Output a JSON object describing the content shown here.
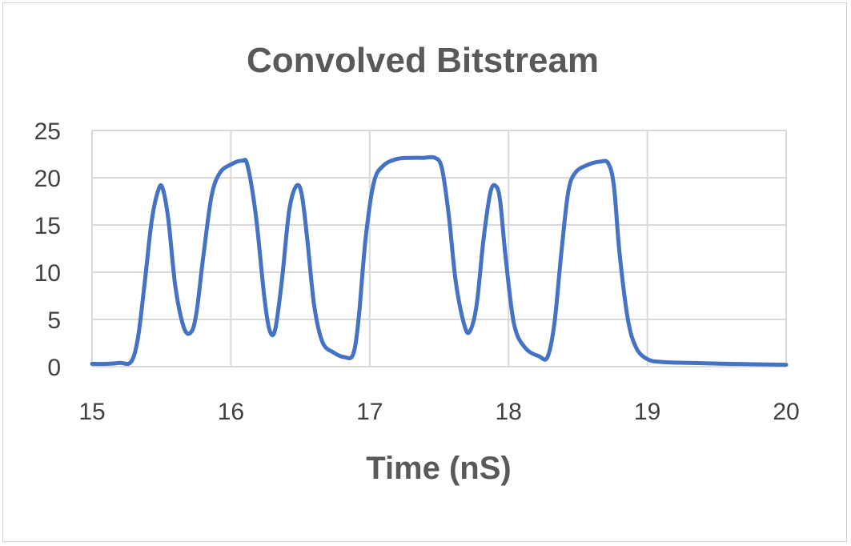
{
  "chart_data": {
    "type": "line",
    "title": "Convolved Bitstream",
    "xlabel": "Time (nS)",
    "ylabel": "",
    "xlim": [
      15,
      20
    ],
    "ylim": [
      0,
      25
    ],
    "xticks": [
      15,
      16,
      17,
      18,
      19,
      20
    ],
    "yticks": [
      0,
      5,
      10,
      15,
      20,
      25
    ],
    "grid": true,
    "legend": "none",
    "series": [
      {
        "color": "#4472C4",
        "x": [
          15.0,
          15.1,
          15.2,
          15.28,
          15.33,
          15.38,
          15.43,
          15.48,
          15.51,
          15.55,
          15.6,
          15.66,
          15.71,
          15.75,
          15.8,
          15.86,
          15.92,
          16.0,
          16.08,
          16.12,
          16.18,
          16.24,
          16.28,
          16.32,
          16.37,
          16.42,
          16.47,
          16.51,
          16.55,
          16.6,
          16.66,
          16.74,
          16.82,
          16.88,
          16.92,
          16.97,
          17.03,
          17.1,
          17.2,
          17.3,
          17.38,
          17.47,
          17.52,
          17.57,
          17.62,
          17.68,
          17.72,
          17.77,
          17.82,
          17.87,
          17.91,
          17.94,
          17.98,
          18.04,
          18.12,
          18.22,
          18.28,
          18.33,
          18.38,
          18.43,
          18.48,
          18.56,
          18.66,
          18.72,
          18.76,
          18.8,
          18.86,
          18.92,
          19.0,
          19.1,
          19.3,
          19.6,
          20.0
        ],
        "y": [
          0.3,
          0.3,
          0.4,
          0.5,
          3.0,
          9.0,
          15.5,
          18.8,
          18.8,
          15.5,
          8.5,
          4.2,
          3.6,
          5.5,
          11.5,
          18.0,
          20.5,
          21.4,
          21.8,
          21.3,
          16.0,
          7.5,
          3.8,
          4.0,
          9.5,
          16.5,
          19.1,
          18.3,
          13.5,
          6.5,
          2.6,
          1.5,
          1.0,
          1.3,
          5.0,
          13.5,
          19.5,
          21.3,
          22.0,
          22.1,
          22.1,
          22.1,
          21.0,
          16.0,
          9.0,
          4.5,
          3.7,
          6.5,
          13.5,
          18.5,
          19.1,
          17.5,
          11.5,
          4.5,
          2.0,
          1.1,
          1.0,
          4.5,
          12.0,
          18.5,
          20.5,
          21.3,
          21.7,
          21.5,
          19.0,
          12.0,
          5.0,
          2.0,
          0.8,
          0.5,
          0.4,
          0.3,
          0.2
        ]
      }
    ]
  }
}
